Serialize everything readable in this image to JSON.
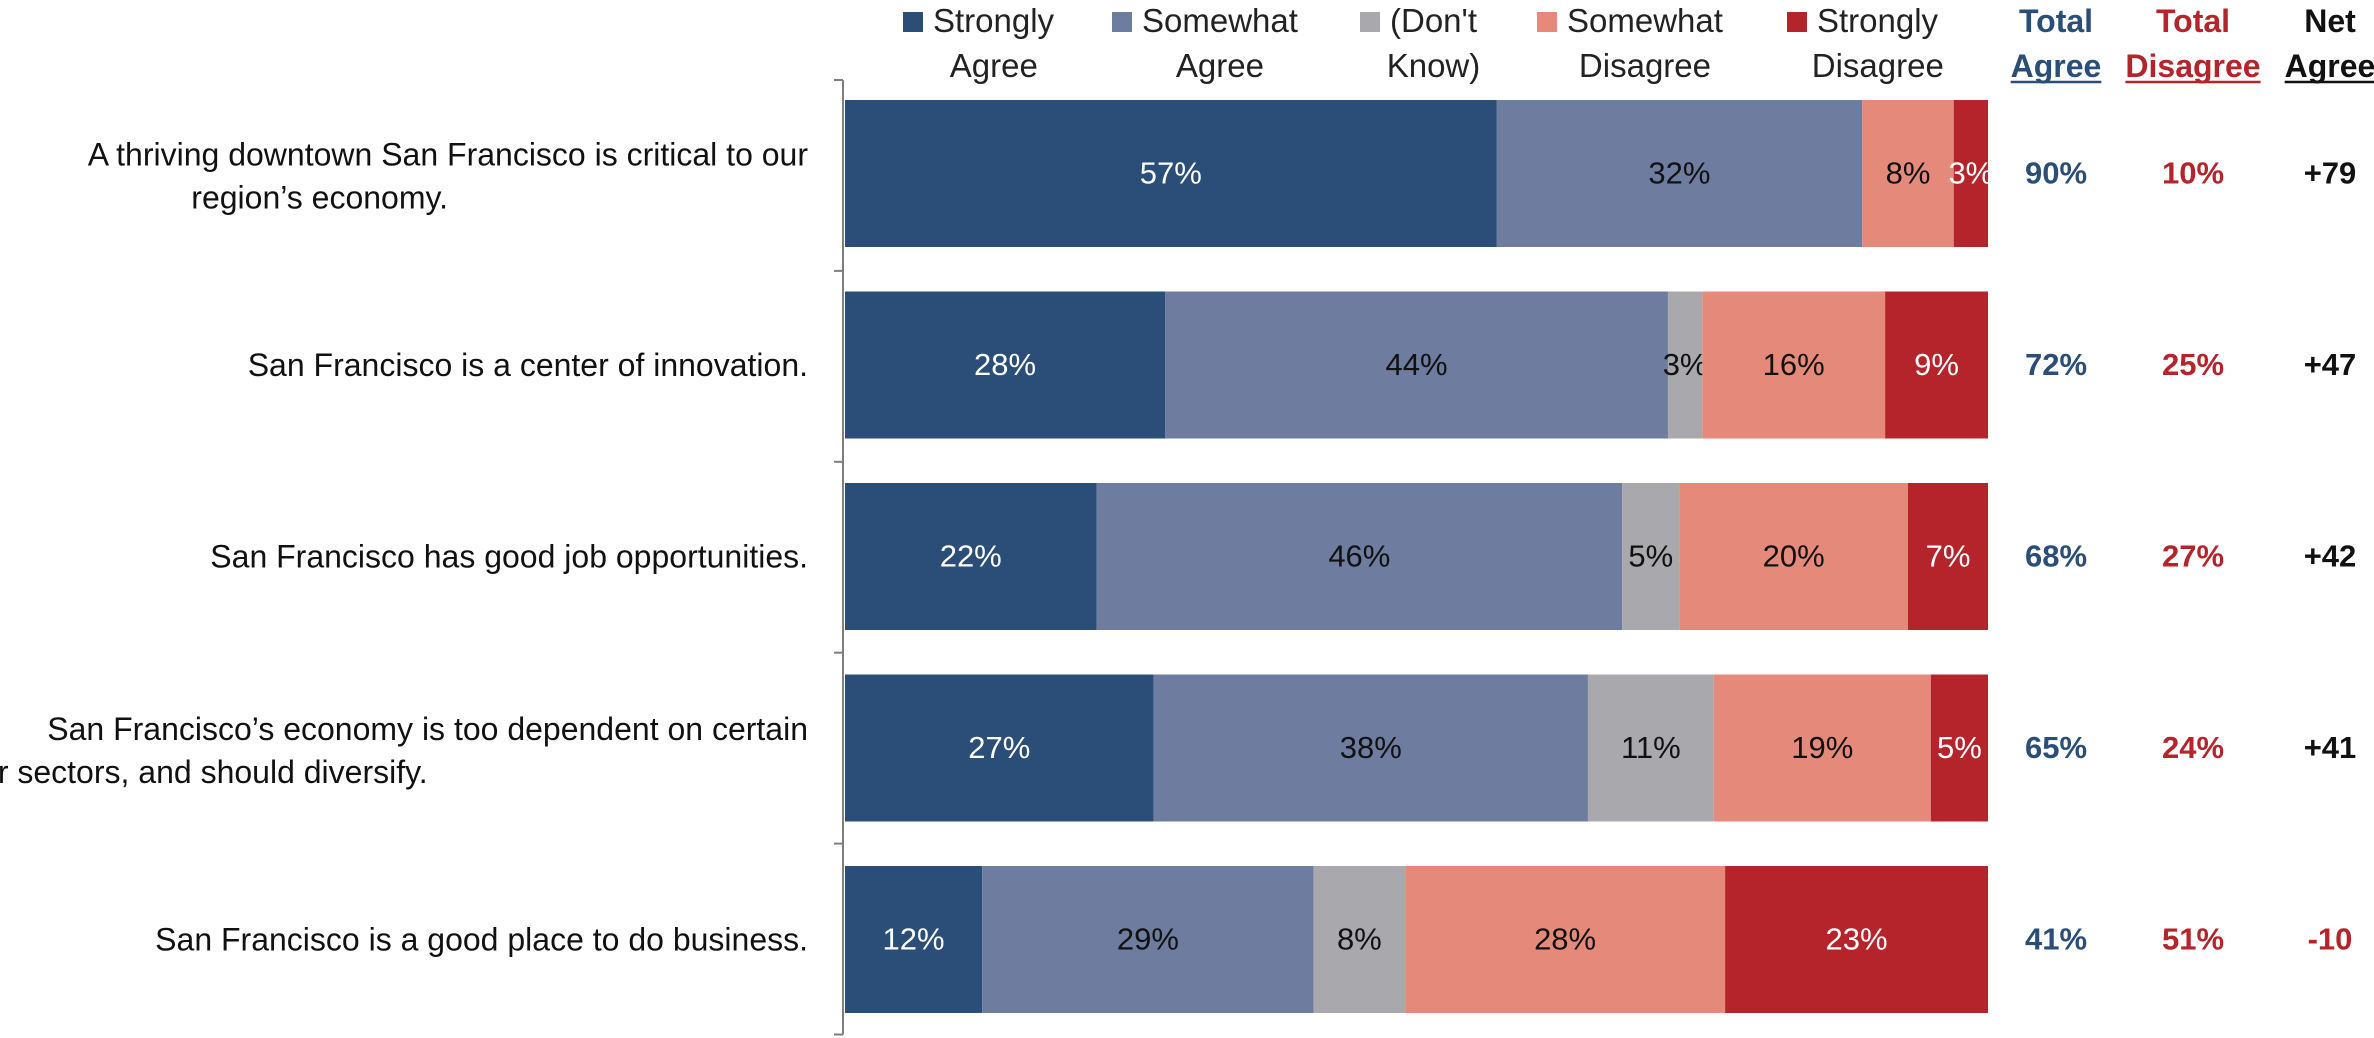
{
  "chart_data": {
    "type": "bar",
    "orientation": "horizontal",
    "stacked": true,
    "categories": [
      [
        "A thriving downtown San Francisco is critical to our",
        "region’s economy."
      ],
      [
        "San Francisco is a center of innovation."
      ],
      [
        "San Francisco has good job opportunities."
      ],
      [
        "San Francisco’s economy is too dependent on certain",
        "industries or sectors, and should diversify."
      ],
      [
        "San Francisco is a good place to do business."
      ]
    ],
    "series": [
      {
        "name": [
          "Strongly",
          "Agree"
        ],
        "color": "#2a4e77",
        "text_color": "#ffffff",
        "values": [
          57,
          28,
          22,
          27,
          12
        ],
        "labels": [
          "57%",
          "28%",
          "22%",
          "27%",
          "12%"
        ]
      },
      {
        "name": [
          "Somewhat",
          "Agree"
        ],
        "color": "#6e7ca0",
        "text_color": "#111111",
        "values": [
          32,
          44,
          46,
          38,
          29
        ],
        "labels": [
          "32%",
          "44%",
          "46%",
          "38%",
          "29%"
        ]
      },
      {
        "name": [
          "(Don't",
          "Know)"
        ],
        "color": "#a9a9ad",
        "text_color": "#111111",
        "values": [
          0,
          3,
          5,
          11,
          8
        ],
        "labels": [
          "",
          "3%",
          "5%",
          "11%",
          "8%"
        ]
      },
      {
        "name": [
          "Somewhat",
          "Disagree"
        ],
        "color": "#e58a7b",
        "text_color": "#111111",
        "values": [
          8,
          16,
          20,
          19,
          28
        ],
        "labels": [
          "8%",
          "16%",
          "20%",
          "19%",
          "28%"
        ]
      },
      {
        "name": [
          "Strongly",
          "Disagree"
        ],
        "color": "#b5242a",
        "text_color": "#ffffff",
        "values": [
          3,
          9,
          7,
          5,
          23
        ],
        "labels": [
          "3%",
          "9%",
          "7%",
          "5%",
          "23%"
        ]
      }
    ],
    "summary_columns": [
      {
        "header": [
          "Total",
          "Agree"
        ],
        "underline": true,
        "color": "#2a4e77",
        "values": [
          "90%",
          "72%",
          "68%",
          "65%",
          "41%"
        ]
      },
      {
        "header": [
          "Total",
          "Disagree"
        ],
        "underline": true,
        "color": "#b5242a",
        "values": [
          "10%",
          "25%",
          "27%",
          "24%",
          "51%"
        ]
      },
      {
        "header": [
          "Net",
          "Agree"
        ],
        "underline": true,
        "color": "#111111",
        "values": [
          "+79",
          "+47",
          "+42",
          "+41",
          "-10"
        ],
        "value_colors": [
          "#111111",
          "#111111",
          "#111111",
          "#111111",
          "#b5242a"
        ]
      }
    ],
    "legend_position": "top",
    "grid": false
  }
}
